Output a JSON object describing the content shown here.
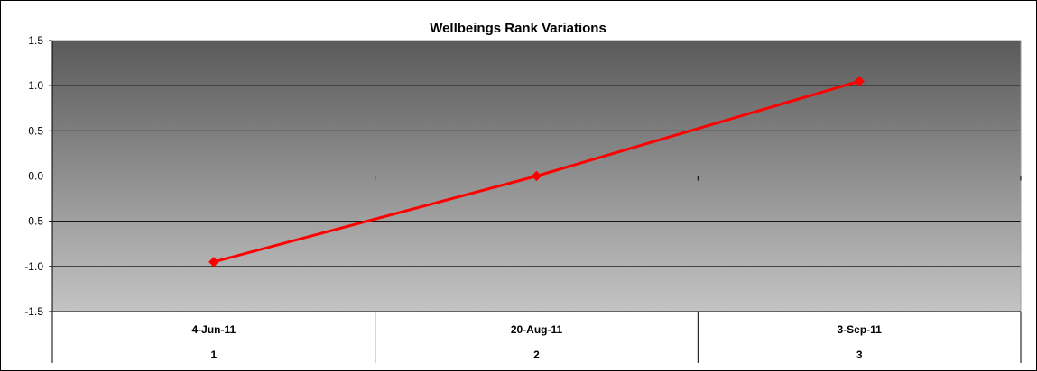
{
  "chart_data": {
    "type": "line",
    "title": "Wellbeings Rank Variations",
    "categories": [
      "4-Jun-11",
      "20-Aug-11",
      "3-Sep-11"
    ],
    "category_index_labels": [
      "1",
      "2",
      "3"
    ],
    "series": [
      {
        "values": [
          -0.95,
          0.0,
          1.05
        ],
        "color": "#ff0000"
      }
    ],
    "xlabel": "",
    "ylabel": "",
    "ylim": [
      -1.5,
      1.5
    ],
    "y_ticks": [
      1.5,
      1.0,
      0.5,
      0.0,
      -0.5,
      -1.0,
      -1.5
    ],
    "y_tick_labels": [
      "1.5",
      "1.0",
      "0.5",
      "0.0",
      "-0.5",
      "-1.0",
      "-1.5"
    ],
    "grid": true,
    "legend": "none",
    "plot_background": {
      "gradient_top": "#5a5a5a",
      "gradient_bottom": "#c4c4c4"
    }
  }
}
